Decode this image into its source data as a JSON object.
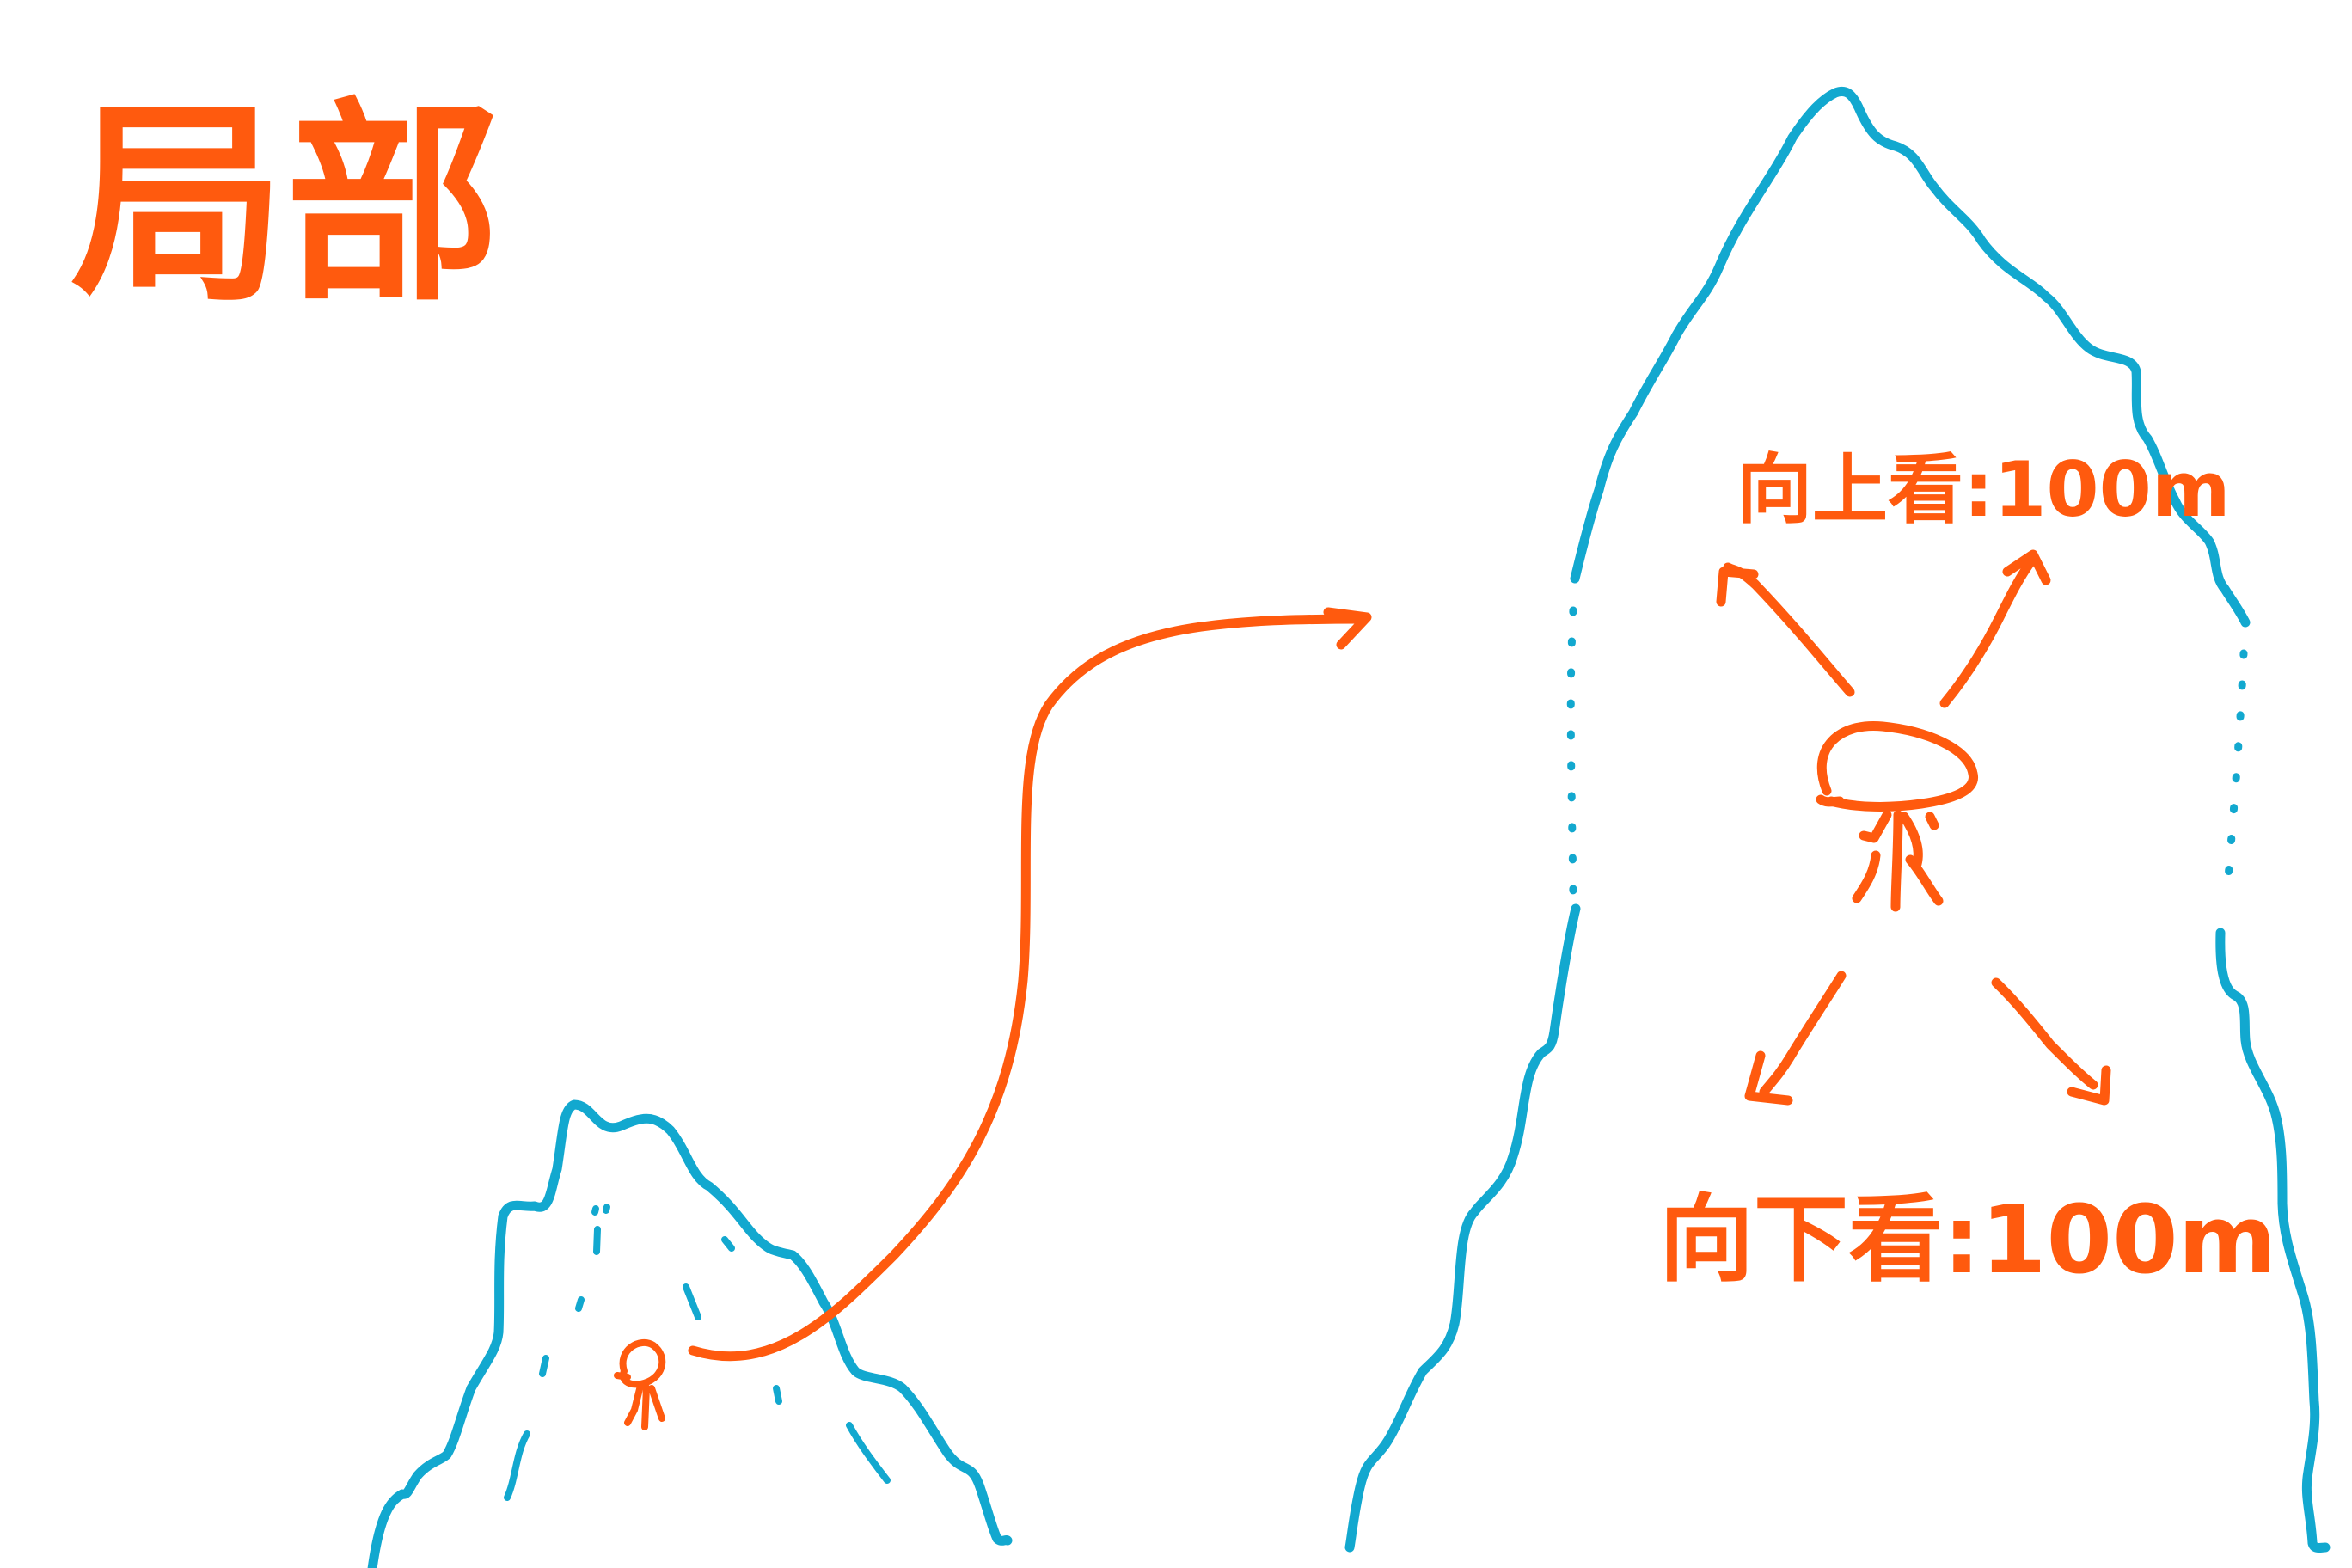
{
  "title": "局部",
  "labels": {
    "look_up": "向上看:100m",
    "look_down": "向下看:100m"
  },
  "colors": {
    "mountain": "#12A8CF",
    "ink": "#FF5A0E",
    "background": "#ffffff"
  }
}
